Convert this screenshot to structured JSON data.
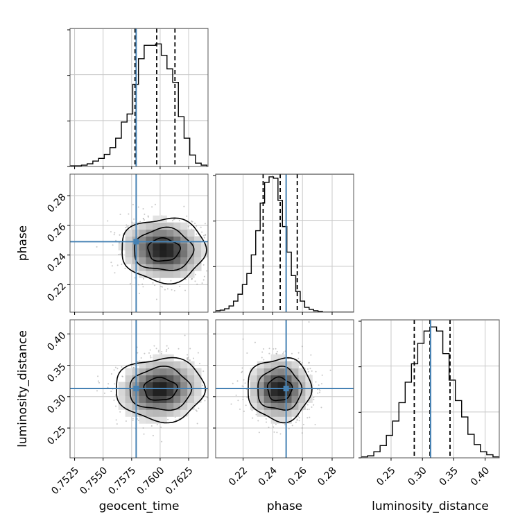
{
  "chart_data": {
    "type": "corner",
    "title": "",
    "parameters": [
      "geocent_time",
      "phase",
      "luminosity_distance"
    ],
    "axis_labels": {
      "geocent_time": "geocent_time",
      "phase": "phase",
      "luminosity_distance": "luminosity_distance"
    },
    "ranges": {
      "geocent_time": [
        0.7521,
        0.7642
      ],
      "phase": [
        0.2015,
        0.2945
      ],
      "luminosity_distance": [
        0.2025,
        0.4225
      ]
    },
    "ticks": {
      "geocent_time": [
        {
          "v": 0.7525,
          "label": "0.7525"
        },
        {
          "v": 0.755,
          "label": "0.7550"
        },
        {
          "v": 0.7575,
          "label": "0.7575"
        },
        {
          "v": 0.76,
          "label": "0.7600"
        },
        {
          "v": 0.7625,
          "label": "0.7625"
        }
      ],
      "phase": [
        {
          "v": 0.22,
          "label": "0.22"
        },
        {
          "v": 0.24,
          "label": "0.24"
        },
        {
          "v": 0.26,
          "label": "0.26"
        },
        {
          "v": 0.28,
          "label": "0.28"
        }
      ],
      "luminosity_distance": [
        {
          "v": 0.25,
          "label": "0.25"
        },
        {
          "v": 0.3,
          "label": "0.30"
        },
        {
          "v": 0.35,
          "label": "0.35"
        },
        {
          "v": 0.4,
          "label": "0.40"
        }
      ]
    },
    "truths": {
      "geocent_time": 0.7579,
      "phase": 0.249,
      "luminosity_distance": 0.313
    },
    "quantiles": {
      "geocent_time": [
        0.7578,
        0.7597,
        0.7613
      ],
      "phase": [
        0.2335,
        0.245,
        0.2565
      ],
      "luminosity_distance": [
        0.287,
        0.312,
        0.344
      ]
    },
    "histograms": {
      "geocent_time": {
        "edges": [
          0.7521,
          0.7526,
          0.7531,
          0.7536,
          0.7541,
          0.7546,
          0.7551,
          0.7556,
          0.7561,
          0.7566,
          0.7571,
          0.7576,
          0.7581,
          0.7586,
          0.7591,
          0.7596,
          0.7601,
          0.7606,
          0.7611,
          0.7616,
          0.7621,
          0.7626,
          0.7631,
          0.7636,
          0.7641
        ],
        "counts": [
          1,
          1,
          2,
          4,
          8,
          12,
          18,
          28,
          42,
          66,
          78,
          122,
          160,
          180,
          180,
          182,
          165,
          145,
          125,
          74,
          42,
          17,
          5,
          2
        ],
        "ymax": 205
      },
      "phase": {
        "edges": [
          0.2015,
          0.2045,
          0.2075,
          0.2105,
          0.2135,
          0.2165,
          0.2195,
          0.2225,
          0.2255,
          0.2285,
          0.2315,
          0.2345,
          0.2375,
          0.2405,
          0.2435,
          0.2465,
          0.2495,
          0.2525,
          0.2555,
          0.2585,
          0.2615,
          0.2645,
          0.2675,
          0.2705,
          0.2735,
          0.2765,
          0.2795,
          0.2825,
          0.2855,
          0.2885,
          0.2915,
          0.2945
        ],
        "counts": [
          2,
          3,
          5,
          9,
          16,
          26,
          40,
          56,
          83,
          118,
          158,
          188,
          196,
          194,
          162,
          124,
          87,
          53,
          30,
          16,
          7,
          4,
          2,
          1,
          0,
          0,
          0,
          0,
          0,
          0,
          0
        ],
        "ymax": 200
      },
      "luminosity_distance": {
        "edges": [
          0.2025,
          0.2125,
          0.2225,
          0.2325,
          0.2425,
          0.2525,
          0.2625,
          0.2725,
          0.2825,
          0.2925,
          0.3025,
          0.3125,
          0.3225,
          0.3325,
          0.3425,
          0.3525,
          0.3625,
          0.3725,
          0.3825,
          0.3925,
          0.4025,
          0.4125,
          0.4225
        ],
        "counts": [
          1,
          2,
          6,
          12,
          22,
          36,
          54,
          74,
          92,
          112,
          124,
          128,
          124,
          102,
          76,
          56,
          40,
          23,
          13,
          6,
          3,
          1
        ],
        "ymax": 135
      }
    },
    "density_2d": {
      "phase|geocent_time": {
        "cx": 0.7603,
        "cy": 0.2435,
        "sx": 0.0018,
        "sy": 0.0102,
        "rho": -0.1,
        "contours": [
          {
            "level": 0.393,
            "rx": 0.0014,
            "ry": 0.0077
          },
          {
            "level": 0.865,
            "rx": 0.0026,
            "ry": 0.0142
          },
          {
            "level": 0.989,
            "rx": 0.0037,
            "ry": 0.0215
          }
        ]
      },
      "luminosity_distance|geocent_time": {
        "cx": 0.76,
        "cy": 0.312,
        "sx": 0.0018,
        "sy": 0.025,
        "rho": 0.12,
        "contours": [
          {
            "level": 0.393,
            "rx": 0.00145,
            "ry": 0.018
          },
          {
            "level": 0.865,
            "rx": 0.0027,
            "ry": 0.034
          },
          {
            "level": 0.989,
            "rx": 0.0039,
            "ry": 0.05
          }
        ]
      },
      "luminosity_distance|phase": {
        "cx": 0.2445,
        "cy": 0.312,
        "sx": 0.0104,
        "sy": 0.025,
        "rho": 0.0,
        "contours": [
          {
            "level": 0.393,
            "rx": 0.0082,
            "ry": 0.0185
          },
          {
            "level": 0.865,
            "rx": 0.0148,
            "ry": 0.034
          },
          {
            "level": 0.989,
            "rx": 0.0215,
            "ry": 0.05
          }
        ]
      }
    },
    "colors": {
      "truth": "#4682b4",
      "hist": "#000000",
      "contour": "#000000",
      "points": "#999999",
      "grid": "#c8c8c8",
      "spine": "#555555"
    },
    "grid": true,
    "legend": "none"
  }
}
